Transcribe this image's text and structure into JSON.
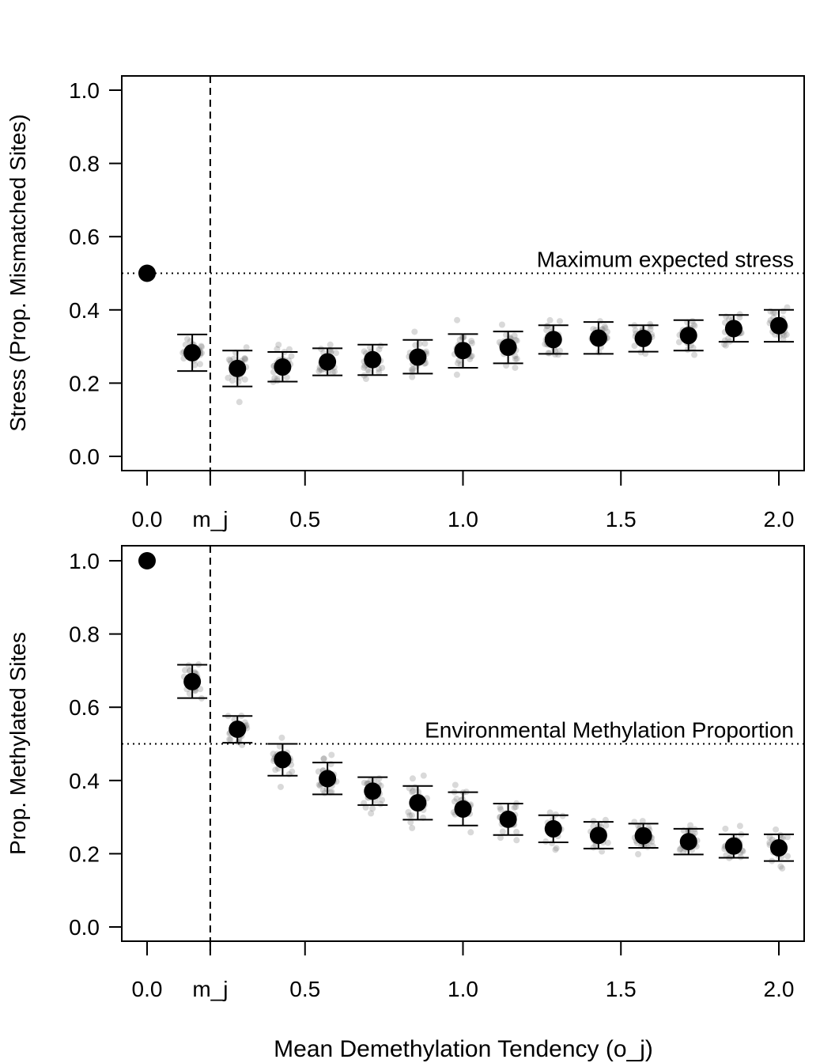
{
  "chart_data": [
    {
      "type": "scatter",
      "ylabel": "Stress (Prop. Mismatched Sites)",
      "xlim": [
        0,
        2.0
      ],
      "ylim": [
        0,
        1.0
      ],
      "x_ticks": [
        {
          "x": 0.0,
          "label": "0.0"
        },
        {
          "x": 0.2,
          "label": "m_j"
        },
        {
          "x": 0.5,
          "label": "0.5"
        },
        {
          "x": 1.0,
          "label": "1.0"
        },
        {
          "x": 1.5,
          "label": "1.5"
        },
        {
          "x": 2.0,
          "label": "2.0"
        }
      ],
      "y_ticks": [
        {
          "y": 0.0,
          "label": "0.0"
        },
        {
          "y": 0.2,
          "label": "0.2"
        },
        {
          "y": 0.4,
          "label": "0.4"
        },
        {
          "y": 0.6,
          "label": "0.6"
        },
        {
          "y": 0.8,
          "label": "0.8"
        },
        {
          "y": 1.0,
          "label": "1.0"
        }
      ],
      "hline": {
        "y": 0.5,
        "label": "Maximum expected stress"
      },
      "vline_x": 0.2,
      "grid": false,
      "series": [
        {
          "x": [
            0.0,
            0.143,
            0.286,
            0.429,
            0.571,
            0.714,
            0.857,
            1.0,
            1.143,
            1.286,
            1.429,
            1.571,
            1.714,
            1.857,
            2.0
          ],
          "mean": [
            0.5,
            0.283,
            0.24,
            0.244,
            0.258,
            0.264,
            0.271,
            0.289,
            0.298,
            0.319,
            0.323,
            0.322,
            0.33,
            0.349,
            0.357
          ],
          "lower": [
            null,
            0.233,
            0.191,
            0.204,
            0.221,
            0.222,
            0.226,
            0.242,
            0.254,
            0.28,
            0.28,
            0.286,
            0.289,
            0.313,
            0.313
          ],
          "upper": [
            null,
            0.333,
            0.289,
            0.285,
            0.295,
            0.305,
            0.318,
            0.334,
            0.341,
            0.358,
            0.367,
            0.358,
            0.372,
            0.386,
            0.4
          ],
          "spread": [
            0,
            0.035,
            0.04,
            0.035,
            0.03,
            0.035,
            0.04,
            0.045,
            0.04,
            0.035,
            0.035,
            0.035,
            0.035,
            0.035,
            0.035
          ]
        }
      ]
    },
    {
      "type": "scatter",
      "ylabel": "Prop. Methylated Sites",
      "xlabel": "Mean Demethylation Tendency (o_j)",
      "xlim": [
        0,
        2.0
      ],
      "ylim": [
        0,
        1.0
      ],
      "x_ticks": [
        {
          "x": 0.0,
          "label": "0.0"
        },
        {
          "x": 0.2,
          "label": "m_j"
        },
        {
          "x": 0.5,
          "label": "0.5"
        },
        {
          "x": 1.0,
          "label": "1.0"
        },
        {
          "x": 1.5,
          "label": "1.5"
        },
        {
          "x": 2.0,
          "label": "2.0"
        }
      ],
      "y_ticks": [
        {
          "y": 0.0,
          "label": "0.0"
        },
        {
          "y": 0.2,
          "label": "0.2"
        },
        {
          "y": 0.4,
          "label": "0.4"
        },
        {
          "y": 0.6,
          "label": "0.6"
        },
        {
          "y": 0.8,
          "label": "0.8"
        },
        {
          "y": 1.0,
          "label": "1.0"
        }
      ],
      "hline": {
        "y": 0.5,
        "label": "Environmental Methylation Proportion"
      },
      "vline_x": 0.2,
      "grid": false,
      "series": [
        {
          "x": [
            0.0,
            0.143,
            0.286,
            0.429,
            0.571,
            0.714,
            0.857,
            1.0,
            1.143,
            1.286,
            1.429,
            1.571,
            1.714,
            1.857,
            2.0
          ],
          "mean": [
            1.0,
            0.67,
            0.54,
            0.457,
            0.405,
            0.371,
            0.339,
            0.322,
            0.294,
            0.268,
            0.25,
            0.249,
            0.233,
            0.221,
            0.216
          ],
          "lower": [
            null,
            0.625,
            0.503,
            0.413,
            0.362,
            0.333,
            0.293,
            0.277,
            0.251,
            0.231,
            0.214,
            0.216,
            0.198,
            0.189,
            0.18
          ],
          "upper": [
            null,
            0.716,
            0.576,
            0.5,
            0.449,
            0.409,
            0.385,
            0.368,
            0.337,
            0.305,
            0.287,
            0.282,
            0.268,
            0.253,
            0.253
          ],
          "spread": [
            0,
            0.04,
            0.035,
            0.04,
            0.04,
            0.04,
            0.045,
            0.045,
            0.045,
            0.04,
            0.04,
            0.035,
            0.035,
            0.035,
            0.04
          ]
        }
      ]
    }
  ]
}
